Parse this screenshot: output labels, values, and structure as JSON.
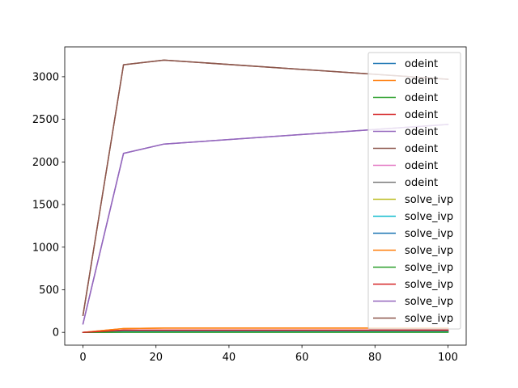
{
  "chart_data": {
    "type": "line",
    "title": "",
    "xlabel": "",
    "ylabel": "",
    "xlim": [
      -5,
      105
    ],
    "ylim": [
      -150,
      3350
    ],
    "x_ticks": [
      0,
      20,
      40,
      60,
      80,
      100
    ],
    "y_ticks": [
      0,
      500,
      1000,
      1500,
      2000,
      2500,
      3000
    ],
    "grid": false,
    "legend_position": "right",
    "x": [
      0,
      11.1,
      22.2,
      100
    ],
    "series": [
      {
        "name": "odeint",
        "color": "#1f77b4",
        "values": [
          0,
          20,
          20,
          20
        ]
      },
      {
        "name": "odeint",
        "color": "#ff7f0e",
        "values": [
          0,
          45,
          50,
          50
        ]
      },
      {
        "name": "odeint",
        "color": "#2ca02c",
        "values": [
          0,
          2,
          2,
          2
        ]
      },
      {
        "name": "odeint",
        "color": "#d62728",
        "values": [
          0,
          25,
          25,
          25
        ]
      },
      {
        "name": "odeint",
        "color": "#9467bd",
        "values": [
          100,
          2100,
          2210,
          2440
        ]
      },
      {
        "name": "odeint",
        "color": "#8c564b",
        "values": [
          200,
          3140,
          3195,
          2970
        ]
      },
      {
        "name": "odeint",
        "color": "#e377c2",
        "values": [
          0,
          10,
          10,
          10
        ]
      },
      {
        "name": "odeint",
        "color": "#7f7f7f",
        "values": [
          0,
          8,
          8,
          8
        ]
      },
      {
        "name": "solve_ivp",
        "color": "#bcbd22",
        "values": [
          0,
          15,
          15,
          15
        ]
      },
      {
        "name": "solve_ivp",
        "color": "#17becf",
        "values": [
          0,
          5,
          5,
          5
        ]
      },
      {
        "name": "solve_ivp",
        "color": "#1f77b4",
        "values": [
          0,
          20,
          20,
          20
        ]
      },
      {
        "name": "solve_ivp",
        "color": "#ff7f0e",
        "values": [
          0,
          45,
          50,
          50
        ]
      },
      {
        "name": "solve_ivp",
        "color": "#2ca02c",
        "values": [
          0,
          2,
          2,
          2
        ]
      },
      {
        "name": "solve_ivp",
        "color": "#d62728",
        "values": [
          0,
          25,
          25,
          25
        ]
      },
      {
        "name": "solve_ivp",
        "color": "#9467bd",
        "values": [
          100,
          2100,
          2210,
          2440
        ]
      },
      {
        "name": "solve_ivp",
        "color": "#8c564b",
        "values": [
          200,
          3140,
          3195,
          2970
        ]
      }
    ]
  }
}
